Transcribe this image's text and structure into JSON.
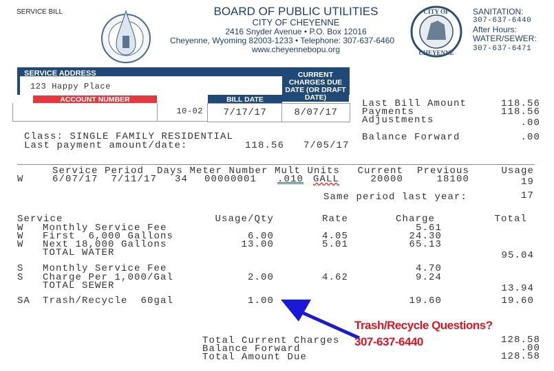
{
  "doc_label": "SERVICE BILL",
  "org": {
    "name": "BOARD OF PUBLIC UTILITIES",
    "city": "CITY OF CHEYENNE",
    "address": "2416 Snyder Avenue • P.O. Box 12016",
    "city_line": "Cheyenne, Wyoming 82003-1233 • Telephone: 307-637-6460",
    "website": "www.cheyennebopu.org",
    "logo_left_text": "CHEYENNE WYOMING BOARD OF PUBLIC UTILITIES",
    "logo_right_text": "CITY OF CHEYENNE"
  },
  "contacts": {
    "sanitation_label": "SANITATION:",
    "sanitation_phone": "307-637-6440",
    "after_hours_label": "After Hours:",
    "water_sewer_label": "WATER/SEWER:",
    "water_sewer_phone": "307-637-6471"
  },
  "account_box": {
    "service_address_label": "SERVICE ADDRESS",
    "service_address": "123 Happy Place",
    "account_number_label": "ACCOUNT NUMBER",
    "account_suffix": "10-02",
    "bill_date_label": "BILL DATE",
    "bill_date": "7/17/17",
    "due_date_label": "CURRENT CHARGES DUE DATE (OR DRAFT DATE)",
    "due_date": "8/07/17"
  },
  "summary": [
    {
      "label": "Last Bill Amount",
      "value": "118.56"
    },
    {
      "label": "Payments",
      "value": "118.56"
    },
    {
      "label": "Adjustments",
      "value": ".00"
    },
    {
      "label": "Balance Forward",
      "value": ".00"
    }
  ],
  "class_line": "Class: SINGLE FAMILY RESIDENTIAL",
  "last_payment": {
    "label": "Last payment amount/date:",
    "amount": "118.56",
    "date": "7/05/17"
  },
  "meter": {
    "headers": [
      "Service Period",
      "Days",
      "Meter Number",
      "Mult",
      "Units",
      "Current",
      "Previous",
      "Usage"
    ],
    "header_text": "Service Period  Days Meter Number Mult Units",
    "row": {
      "type": "W",
      "period": "6/07/17  7/11/17",
      "days": "34",
      "meter": "00000001",
      "mult": ".010",
      "units": "GALL",
      "current": "20000",
      "previous": "18100",
      "usage": "19"
    },
    "same_period_label": "Same period last year:",
    "same_period_value": "17"
  },
  "charges": {
    "headers": {
      "service": "Service",
      "usage": "Usage/Qty",
      "rate": "Rate",
      "charge": "Charge",
      "total": "Total"
    },
    "rows": [
      {
        "code": "W",
        "desc": "Monthly Service Fee",
        "usage": "",
        "rate": "",
        "charge": "5.61",
        "total": ""
      },
      {
        "code": "W",
        "desc": "First  6,000 Gallons",
        "usage": "6.00",
        "rate": "4.05",
        "charge": "24.30",
        "total": ""
      },
      {
        "code": "W",
        "desc": "Next 18,000 Gallons",
        "usage": "13.00",
        "rate": "5.01",
        "charge": "65.13",
        "total": ""
      },
      {
        "code": "",
        "desc": "TOTAL WATER",
        "usage": "",
        "rate": "",
        "charge": "",
        "total": "95.04"
      },
      {
        "code": "S",
        "desc": "Monthly Service Fee",
        "usage": "",
        "rate": "",
        "charge": "4.70",
        "total": ""
      },
      {
        "code": "S",
        "desc": "Charge Per 1,000/Gal",
        "usage": "2.00",
        "rate": "4.62",
        "charge": "9.24",
        "total": ""
      },
      {
        "code": "",
        "desc": "TOTAL SEWER",
        "usage": "",
        "rate": "",
        "charge": "",
        "total": "13.94"
      },
      {
        "code": "SA",
        "desc": "Trash/Recycle  60gal",
        "usage": "1.00",
        "rate": "",
        "charge": "19.60",
        "total": "19.60"
      }
    ]
  },
  "totals": [
    {
      "label": "Total Current Charges",
      "value": "128.58"
    },
    {
      "label": "Balance Forward",
      "value": ".00"
    },
    {
      "label": "Total Amount Due",
      "value": "128.58"
    }
  ],
  "callout": {
    "question": "Trash/Recycle Questions?",
    "phone": "307-637-6440",
    "color": "#e0141e",
    "arrow_color": "#1a1ad6"
  },
  "colors": {
    "header_blue": "#1f4a78",
    "account_red": "#e8363d"
  }
}
